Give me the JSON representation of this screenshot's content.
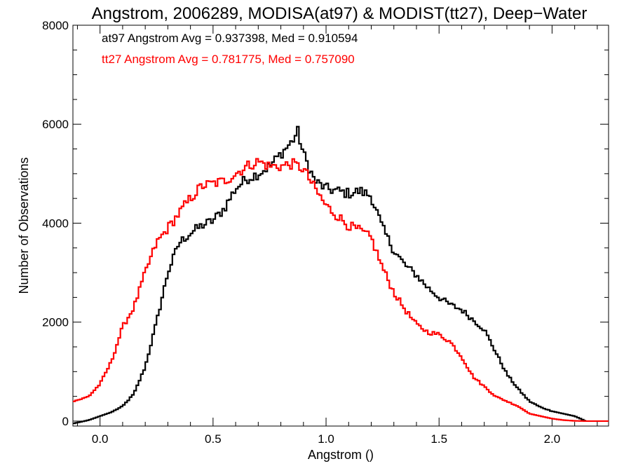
{
  "chart_data": {
    "type": "line",
    "title": "Angstrom, 2006289, MODISA(at97) & MODIST(tt27), Deep−Water",
    "xlabel": "Angstrom ()",
    "ylabel": "Number of Observations",
    "xlim": [
      -0.12,
      2.25
    ],
    "ylim": [
      -100,
      8000
    ],
    "xticks": [
      0.0,
      0.5,
      1.0,
      1.5,
      2.0
    ],
    "xtick_labels": [
      "0.0",
      "0.5",
      "1.0",
      "1.5",
      "2.0"
    ],
    "yticks": [
      0,
      2000,
      4000,
      6000,
      8000
    ],
    "ytick_labels": [
      "0",
      "2000",
      "4000",
      "6000",
      "8000"
    ],
    "grid": false,
    "step": true,
    "annotations": [
      {
        "text": "at97 Angstrom Avg = 0.937398, Med = 0.910594",
        "color": "#000000"
      },
      {
        "text": "tt27 Angstrom Avg = 0.781775, Med = 0.757090",
        "color": "#ff0000"
      }
    ],
    "series": [
      {
        "name": "at97",
        "color": "#000000",
        "x": [
          -0.12,
          -0.05,
          0.0,
          0.05,
          0.1,
          0.15,
          0.2,
          0.25,
          0.3,
          0.35,
          0.4,
          0.45,
          0.5,
          0.55,
          0.6,
          0.65,
          0.7,
          0.75,
          0.8,
          0.85,
          0.875,
          0.9,
          0.95,
          1.0,
          1.05,
          1.1,
          1.15,
          1.2,
          1.25,
          1.3,
          1.35,
          1.4,
          1.45,
          1.5,
          1.55,
          1.6,
          1.65,
          1.7,
          1.75,
          1.8,
          1.85,
          1.9,
          1.95,
          2.0,
          2.05,
          2.1,
          2.15
        ],
        "y": [
          -50,
          20,
          100,
          180,
          300,
          550,
          1100,
          2000,
          3000,
          3600,
          3800,
          3950,
          4050,
          4300,
          4700,
          4900,
          5000,
          5150,
          5400,
          5650,
          5850,
          5400,
          4850,
          4700,
          4650,
          4600,
          4650,
          4550,
          3900,
          3450,
          3150,
          2950,
          2700,
          2500,
          2350,
          2250,
          2050,
          1850,
          1400,
          950,
          650,
          400,
          280,
          200,
          150,
          100,
          0
        ]
      },
      {
        "name": "tt27",
        "color": "#ff0000",
        "x": [
          -0.12,
          -0.08,
          -0.05,
          0.0,
          0.05,
          0.1,
          0.15,
          0.2,
          0.25,
          0.3,
          0.35,
          0.4,
          0.45,
          0.5,
          0.55,
          0.6,
          0.65,
          0.7,
          0.75,
          0.8,
          0.85,
          0.9,
          0.95,
          1.0,
          1.05,
          1.1,
          1.15,
          1.2,
          1.25,
          1.3,
          1.35,
          1.4,
          1.45,
          1.5,
          1.55,
          1.6,
          1.65,
          1.7,
          1.75,
          1.8,
          1.85,
          1.9,
          1.95,
          2.0,
          2.05,
          2.1,
          2.15,
          2.25
        ],
        "y": [
          400,
          450,
          500,
          750,
          1200,
          1900,
          2300,
          3000,
          3600,
          3900,
          4200,
          4500,
          4750,
          4800,
          4850,
          5000,
          5150,
          5250,
          5150,
          5150,
          5200,
          5100,
          4700,
          4350,
          4150,
          3950,
          3850,
          3700,
          3100,
          2600,
          2250,
          1950,
          1800,
          1750,
          1600,
          1300,
          900,
          700,
          500,
          400,
          300,
          150,
          100,
          50,
          20,
          5,
          0,
          0
        ]
      }
    ]
  }
}
